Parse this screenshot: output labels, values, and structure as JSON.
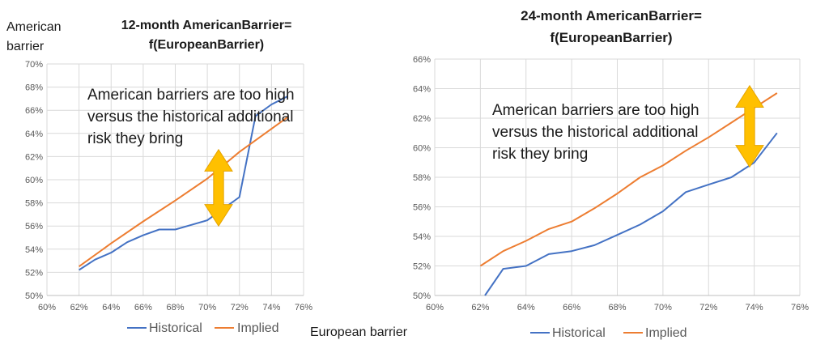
{
  "chart_data": [
    {
      "type": "line",
      "title_lines": [
        "12-month AmericanBarrier=",
        "f(EuropeanBarrier)"
      ],
      "ylabel_lines": [
        "American",
        "barrier"
      ],
      "xlabel": "European barrier",
      "x_ticks": [
        "60%",
        "62%",
        "64%",
        "66%",
        "68%",
        "70%",
        "72%",
        "74%",
        "76%"
      ],
      "y_ticks": [
        "50%",
        "52%",
        "54%",
        "56%",
        "58%",
        "60%",
        "62%",
        "64%",
        "66%",
        "68%",
        "70%"
      ],
      "xlim": [
        0.6,
        0.76
      ],
      "ylim": [
        0.5,
        0.7
      ],
      "grid": true,
      "legend_position": "bottom",
      "annotation_lines": [
        "American barriers are too high",
        "versus the historical additional",
        "risk they bring"
      ],
      "series": [
        {
          "name": "Historical",
          "color": "#4472c4",
          "x": [
            0.62,
            0.63,
            0.64,
            0.65,
            0.66,
            0.67,
            0.68,
            0.69,
            0.7,
            0.71,
            0.72,
            0.73,
            0.74,
            0.75
          ],
          "y": [
            0.522,
            0.531,
            0.537,
            0.546,
            0.552,
            0.557,
            0.557,
            0.561,
            0.565,
            0.575,
            0.585,
            0.655,
            0.665,
            0.672
          ]
        },
        {
          "name": "Implied",
          "color": "#ed7d31",
          "x": [
            0.62,
            0.64,
            0.66,
            0.68,
            0.7,
            0.72,
            0.75
          ],
          "y": [
            0.525,
            0.545,
            0.564,
            0.582,
            0.601,
            0.624,
            0.654
          ]
        }
      ],
      "arrow": {
        "x": 0.707,
        "y_top": 0.626,
        "y_bottom": 0.56,
        "color": "#ffc000"
      }
    },
    {
      "type": "line",
      "title_lines": [
        "24-month AmericanBarrier=",
        "f(EuropeanBarrier)"
      ],
      "x_ticks": [
        "60%",
        "62%",
        "64%",
        "66%",
        "68%",
        "70%",
        "72%",
        "74%",
        "76%"
      ],
      "y_ticks": [
        "50%",
        "52%",
        "54%",
        "56%",
        "58%",
        "60%",
        "62%",
        "64%",
        "66%"
      ],
      "xlim": [
        0.6,
        0.76
      ],
      "ylim": [
        0.5,
        0.66
      ],
      "grid": true,
      "legend_position": "bottom",
      "annotation_lines": [
        "American barriers are too high",
        "versus the historical additional",
        "risk they bring"
      ],
      "series": [
        {
          "name": "Historical",
          "color": "#4472c4",
          "x": [
            0.622,
            0.63,
            0.64,
            0.65,
            0.66,
            0.67,
            0.68,
            0.69,
            0.7,
            0.71,
            0.72,
            0.73,
            0.74,
            0.75
          ],
          "y": [
            0.5,
            0.518,
            0.52,
            0.528,
            0.53,
            0.534,
            0.541,
            0.548,
            0.557,
            0.57,
            0.575,
            0.58,
            0.59,
            0.61
          ]
        },
        {
          "name": "Implied",
          "color": "#ed7d31",
          "x": [
            0.62,
            0.63,
            0.64,
            0.65,
            0.66,
            0.67,
            0.68,
            0.69,
            0.7,
            0.71,
            0.72,
            0.73,
            0.74,
            0.75
          ],
          "y": [
            0.52,
            0.53,
            0.537,
            0.545,
            0.55,
            0.559,
            0.569,
            0.58,
            0.588,
            0.598,
            0.607,
            0.617,
            0.627,
            0.637
          ]
        }
      ],
      "arrow": {
        "x": 0.738,
        "y_top": 0.642,
        "y_bottom": 0.587,
        "color": "#ffc000"
      }
    }
  ]
}
